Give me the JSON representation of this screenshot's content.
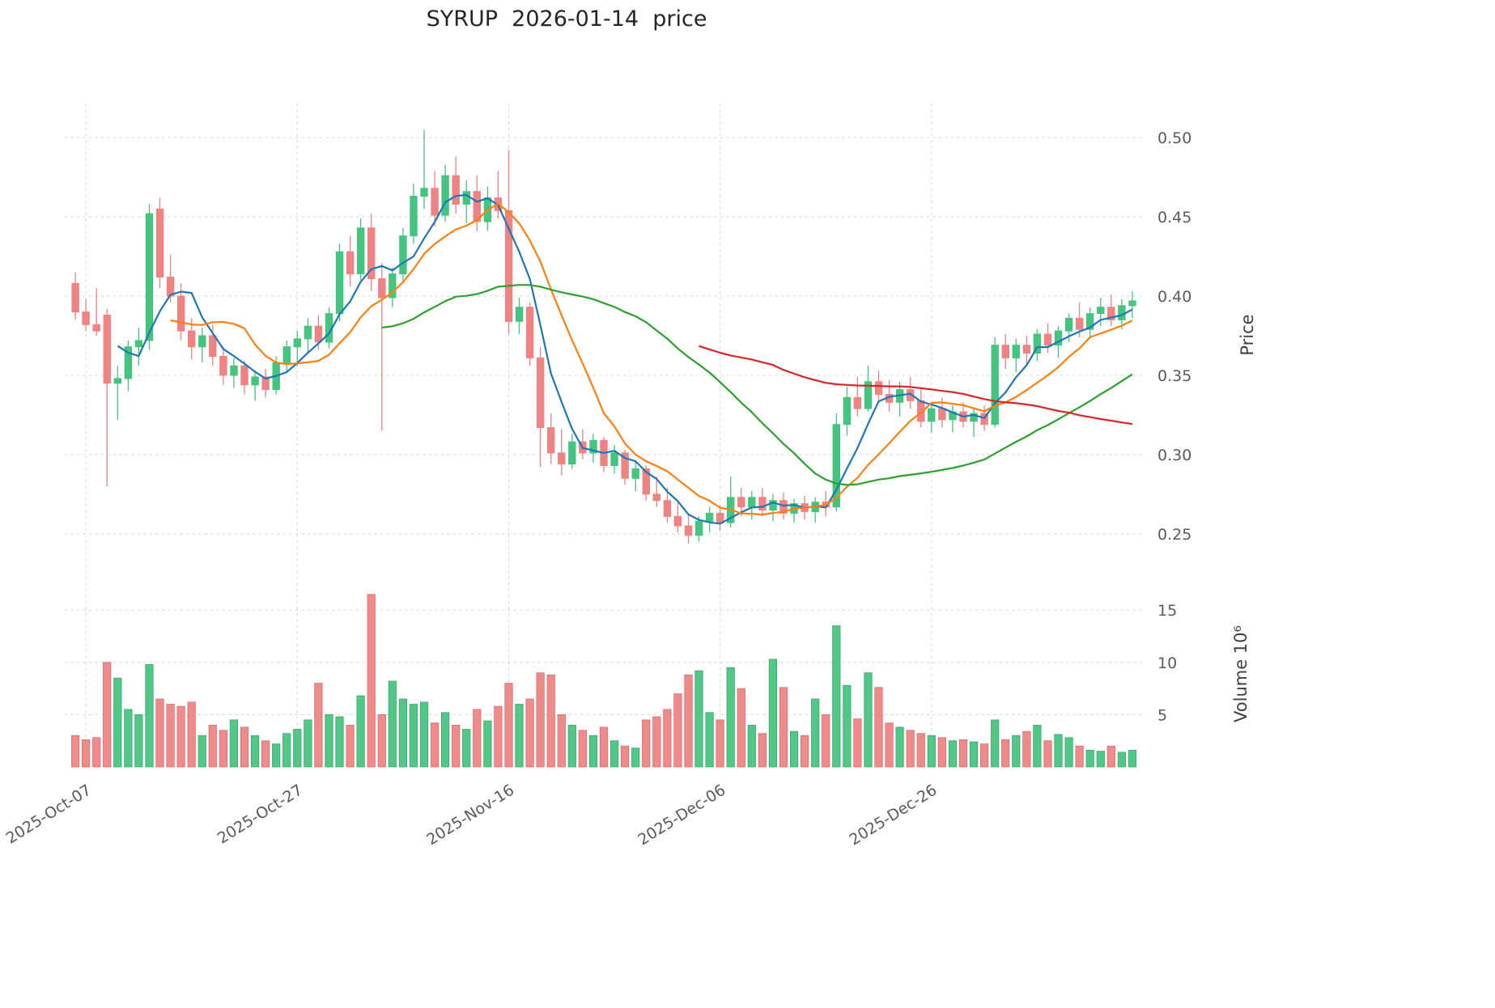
{
  "chart_data": {
    "type": "candlestick",
    "title": "SYRUP  2026-01-14  price",
    "ylabel": "Price",
    "ylabel_volume": "Volume 10⁶",
    "y_ticks": [
      0.25,
      0.3,
      0.35,
      0.4,
      0.45,
      0.5
    ],
    "price_ylim": [
      0.2295,
      0.5215
    ],
    "volume_ticks": [
      5,
      10,
      15
    ],
    "volume_ylim": [
      0,
      17.8
    ],
    "volume_unit": "10⁶",
    "grid": true,
    "x_tick_labels": [
      "2025-Oct-07",
      "2025-Oct-27",
      "2025-Nov-16",
      "2025-Dec-06",
      "2025-Dec-26"
    ],
    "x_tick_indices": [
      1,
      21,
      41,
      61,
      81
    ],
    "up_color": "#44c47e",
    "down_color": "#ef8282",
    "up_edge": "#2da05f",
    "down_edge": "#d95f5f",
    "moving_averages": [
      {
        "window": 5,
        "color": "#1f77b4"
      },
      {
        "window": 10,
        "color": "#ff7f0e"
      },
      {
        "window": 30,
        "color": "#2ca02c"
      },
      {
        "window": 60,
        "color": "#d62728"
      }
    ],
    "candles_format": [
      "date",
      "open",
      "high",
      "low",
      "close",
      "volume_millions"
    ],
    "candles": [
      [
        "2025-10-06",
        0.408,
        0.415,
        0.385,
        0.39,
        3.0
      ],
      [
        "2025-10-07",
        0.39,
        0.398,
        0.378,
        0.382,
        2.6
      ],
      [
        "2025-10-08",
        0.382,
        0.405,
        0.375,
        0.378,
        2.8
      ],
      [
        "2025-10-09",
        0.388,
        0.392,
        0.28,
        0.345,
        10.0
      ],
      [
        "2025-10-10",
        0.345,
        0.356,
        0.322,
        0.348,
        8.5
      ],
      [
        "2025-10-11",
        0.348,
        0.372,
        0.34,
        0.368,
        5.5
      ],
      [
        "2025-10-12",
        0.368,
        0.38,
        0.356,
        0.372,
        5.0
      ],
      [
        "2025-10-13",
        0.372,
        0.458,
        0.366,
        0.452,
        9.8
      ],
      [
        "2025-10-14",
        0.455,
        0.462,
        0.405,
        0.412,
        6.5
      ],
      [
        "2025-10-15",
        0.412,
        0.426,
        0.396,
        0.4,
        6.0
      ],
      [
        "2025-10-16",
        0.4,
        0.408,
        0.372,
        0.378,
        5.8
      ],
      [
        "2025-10-17",
        0.378,
        0.386,
        0.36,
        0.368,
        6.2
      ],
      [
        "2025-10-18",
        0.368,
        0.38,
        0.358,
        0.375,
        3.0
      ],
      [
        "2025-10-19",
        0.375,
        0.382,
        0.356,
        0.362,
        4.0
      ],
      [
        "2025-10-20",
        0.362,
        0.368,
        0.344,
        0.35,
        3.5
      ],
      [
        "2025-10-21",
        0.35,
        0.361,
        0.342,
        0.356,
        4.5
      ],
      [
        "2025-10-22",
        0.356,
        0.359,
        0.338,
        0.344,
        3.8
      ],
      [
        "2025-10-23",
        0.344,
        0.353,
        0.334,
        0.349,
        3.0
      ],
      [
        "2025-10-24",
        0.349,
        0.354,
        0.336,
        0.341,
        2.5
      ],
      [
        "2025-10-25",
        0.341,
        0.362,
        0.338,
        0.358,
        2.2
      ],
      [
        "2025-10-26",
        0.358,
        0.372,
        0.352,
        0.368,
        3.2
      ],
      [
        "2025-10-27",
        0.368,
        0.378,
        0.356,
        0.373,
        3.6
      ],
      [
        "2025-10-28",
        0.373,
        0.386,
        0.364,
        0.381,
        4.5
      ],
      [
        "2025-10-29",
        0.381,
        0.388,
        0.366,
        0.371,
        8.0
      ],
      [
        "2025-10-30",
        0.371,
        0.393,
        0.367,
        0.389,
        5.0
      ],
      [
        "2025-10-31",
        0.389,
        0.433,
        0.384,
        0.428,
        4.8
      ],
      [
        "2025-11-01",
        0.428,
        0.438,
        0.406,
        0.414,
        4.0
      ],
      [
        "2025-11-02",
        0.414,
        0.449,
        0.41,
        0.443,
        6.8
      ],
      [
        "2025-11-03",
        0.443,
        0.452,
        0.403,
        0.411,
        16.5
      ],
      [
        "2025-11-04",
        0.411,
        0.421,
        0.315,
        0.399,
        5.0
      ],
      [
        "2025-11-05",
        0.399,
        0.418,
        0.393,
        0.414,
        8.2
      ],
      [
        "2025-11-06",
        0.414,
        0.443,
        0.409,
        0.438,
        6.5
      ],
      [
        "2025-11-07",
        0.438,
        0.471,
        0.433,
        0.463,
        6.0
      ],
      [
        "2025-11-08",
        0.463,
        0.505,
        0.455,
        0.468,
        6.2
      ],
      [
        "2025-11-09",
        0.468,
        0.479,
        0.444,
        0.451,
        4.2
      ],
      [
        "2025-11-10",
        0.451,
        0.483,
        0.447,
        0.476,
        5.2
      ],
      [
        "2025-11-11",
        0.476,
        0.488,
        0.452,
        0.458,
        4.0
      ],
      [
        "2025-11-12",
        0.458,
        0.473,
        0.446,
        0.466,
        3.6
      ],
      [
        "2025-11-13",
        0.466,
        0.476,
        0.441,
        0.447,
        5.5
      ],
      [
        "2025-11-14",
        0.447,
        0.469,
        0.441,
        0.462,
        4.4
      ],
      [
        "2025-11-15",
        0.462,
        0.479,
        0.449,
        0.454,
        5.8
      ],
      [
        "2025-11-16",
        0.454,
        0.492,
        0.376,
        0.384,
        8.0
      ],
      [
        "2025-11-17",
        0.384,
        0.399,
        0.376,
        0.393,
        6.0
      ],
      [
        "2025-11-18",
        0.393,
        0.396,
        0.356,
        0.361,
        6.5
      ],
      [
        "2025-11-19",
        0.361,
        0.368,
        0.292,
        0.317,
        9.0
      ],
      [
        "2025-11-20",
        0.317,
        0.326,
        0.294,
        0.301,
        8.8
      ],
      [
        "2025-11-21",
        0.301,
        0.316,
        0.287,
        0.294,
        5.0
      ],
      [
        "2025-11-22",
        0.294,
        0.313,
        0.291,
        0.308,
        4.0
      ],
      [
        "2025-11-23",
        0.308,
        0.316,
        0.297,
        0.301,
        3.5
      ],
      [
        "2025-11-24",
        0.301,
        0.313,
        0.295,
        0.309,
        3.0
      ],
      [
        "2025-11-25",
        0.309,
        0.311,
        0.289,
        0.293,
        3.8
      ],
      [
        "2025-11-26",
        0.293,
        0.306,
        0.288,
        0.301,
        2.5
      ],
      [
        "2025-11-27",
        0.301,
        0.303,
        0.281,
        0.285,
        2.0
      ],
      [
        "2025-11-28",
        0.285,
        0.296,
        0.277,
        0.291,
        1.8
      ],
      [
        "2025-11-29",
        0.291,
        0.293,
        0.271,
        0.275,
        4.5
      ],
      [
        "2025-11-30",
        0.275,
        0.286,
        0.267,
        0.271,
        4.8
      ],
      [
        "2025-12-01",
        0.271,
        0.279,
        0.257,
        0.261,
        5.5
      ],
      [
        "2025-12-02",
        0.261,
        0.271,
        0.251,
        0.255,
        7.0
      ],
      [
        "2025-12-03",
        0.255,
        0.263,
        0.244,
        0.249,
        8.8
      ],
      [
        "2025-12-04",
        0.249,
        0.261,
        0.245,
        0.258,
        9.2
      ],
      [
        "2025-12-05",
        0.258,
        0.267,
        0.251,
        0.263,
        5.2
      ],
      [
        "2025-12-06",
        0.263,
        0.268,
        0.252,
        0.257,
        4.5
      ],
      [
        "2025-12-07",
        0.257,
        0.286,
        0.254,
        0.273,
        9.5
      ],
      [
        "2025-12-08",
        0.273,
        0.279,
        0.261,
        0.267,
        7.5
      ],
      [
        "2025-12-09",
        0.267,
        0.277,
        0.259,
        0.273,
        4.0
      ],
      [
        "2025-12-10",
        0.273,
        0.279,
        0.261,
        0.265,
        3.2
      ],
      [
        "2025-12-11",
        0.265,
        0.275,
        0.258,
        0.271,
        10.3
      ],
      [
        "2025-12-12",
        0.271,
        0.276,
        0.259,
        0.263,
        7.6
      ],
      [
        "2025-12-13",
        0.263,
        0.272,
        0.257,
        0.269,
        3.4
      ],
      [
        "2025-12-14",
        0.269,
        0.274,
        0.259,
        0.264,
        3.0
      ],
      [
        "2025-12-15",
        0.264,
        0.273,
        0.257,
        0.27,
        6.5
      ],
      [
        "2025-12-16",
        0.27,
        0.277,
        0.261,
        0.267,
        5.0
      ],
      [
        "2025-12-17",
        0.267,
        0.326,
        0.264,
        0.319,
        13.5
      ],
      [
        "2025-12-18",
        0.319,
        0.343,
        0.312,
        0.336,
        7.8
      ],
      [
        "2025-12-19",
        0.336,
        0.349,
        0.324,
        0.329,
        4.6
      ],
      [
        "2025-12-20",
        0.329,
        0.356,
        0.327,
        0.346,
        9.0
      ],
      [
        "2025-12-21",
        0.346,
        0.353,
        0.334,
        0.338,
        7.6
      ],
      [
        "2025-12-22",
        0.338,
        0.347,
        0.327,
        0.333,
        4.2
      ],
      [
        "2025-12-23",
        0.333,
        0.346,
        0.324,
        0.341,
        3.8
      ],
      [
        "2025-12-24",
        0.341,
        0.349,
        0.329,
        0.334,
        3.5
      ],
      [
        "2025-12-25",
        0.334,
        0.341,
        0.317,
        0.321,
        3.2
      ],
      [
        "2025-12-26",
        0.321,
        0.333,
        0.314,
        0.329,
        3.0
      ],
      [
        "2025-12-27",
        0.329,
        0.336,
        0.317,
        0.322,
        2.8
      ],
      [
        "2025-12-28",
        0.322,
        0.331,
        0.314,
        0.327,
        2.5
      ],
      [
        "2025-12-29",
        0.327,
        0.333,
        0.317,
        0.321,
        2.6
      ],
      [
        "2025-12-30",
        0.321,
        0.329,
        0.311,
        0.326,
        2.4
      ],
      [
        "2025-12-31",
        0.326,
        0.331,
        0.315,
        0.319,
        2.2
      ],
      [
        "2026-01-01",
        0.319,
        0.374,
        0.317,
        0.369,
        4.5
      ],
      [
        "2026-01-02",
        0.369,
        0.376,
        0.354,
        0.361,
        2.6
      ],
      [
        "2026-01-03",
        0.361,
        0.373,
        0.352,
        0.369,
        3.0
      ],
      [
        "2026-01-04",
        0.369,
        0.375,
        0.357,
        0.364,
        3.4
      ],
      [
        "2026-01-05",
        0.364,
        0.379,
        0.359,
        0.376,
        4.0
      ],
      [
        "2026-01-06",
        0.376,
        0.383,
        0.364,
        0.369,
        2.5
      ],
      [
        "2026-01-07",
        0.369,
        0.381,
        0.361,
        0.378,
        3.1
      ],
      [
        "2026-01-08",
        0.378,
        0.389,
        0.371,
        0.386,
        2.8
      ],
      [
        "2026-01-09",
        0.386,
        0.396,
        0.374,
        0.379,
        2.0
      ],
      [
        "2026-01-10",
        0.379,
        0.393,
        0.373,
        0.389,
        1.6
      ],
      [
        "2026-01-11",
        0.389,
        0.399,
        0.381,
        0.393,
        1.5
      ],
      [
        "2026-01-12",
        0.393,
        0.401,
        0.381,
        0.385,
        2.0
      ],
      [
        "2026-01-13",
        0.385,
        0.398,
        0.379,
        0.394,
        1.4
      ],
      [
        "2026-01-14",
        0.394,
        0.403,
        0.386,
        0.397,
        1.6
      ]
    ]
  }
}
